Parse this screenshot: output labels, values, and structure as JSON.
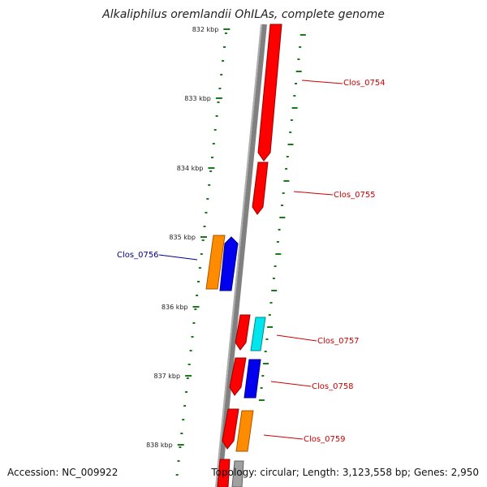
{
  "title": "Alkaliphilus oremlandii OhILAs, complete genome",
  "accession_text": "Accession: NC_009922",
  "topology_text": "Topology: circular; Length: 3,123,558 bp; Genes: 2,950",
  "colors": {
    "red": "#ff0000",
    "blue": "#0000ee",
    "orange": "#ff8c00",
    "cyan": "#00e5ee",
    "tick": "#1a7a1a",
    "backbone": "#808080",
    "label_red": "#cc0000",
    "label_blue": "#00008b"
  },
  "kbp_labels": [
    "832 kbp",
    "833 kbp",
    "834 kbp",
    "835 kbp",
    "836 kbp",
    "837 kbp",
    "838 kbp"
  ],
  "genes": [
    {
      "name": "Clos_0754",
      "color": "red"
    },
    {
      "name": "Clos_0755",
      "color": "red"
    },
    {
      "name": "Clos_0756",
      "color": "blue"
    },
    {
      "name": "Clos_0757",
      "color": "red"
    },
    {
      "name": "Clos_0758",
      "color": "red"
    },
    {
      "name": "Clos_0759",
      "color": "red"
    }
  ]
}
